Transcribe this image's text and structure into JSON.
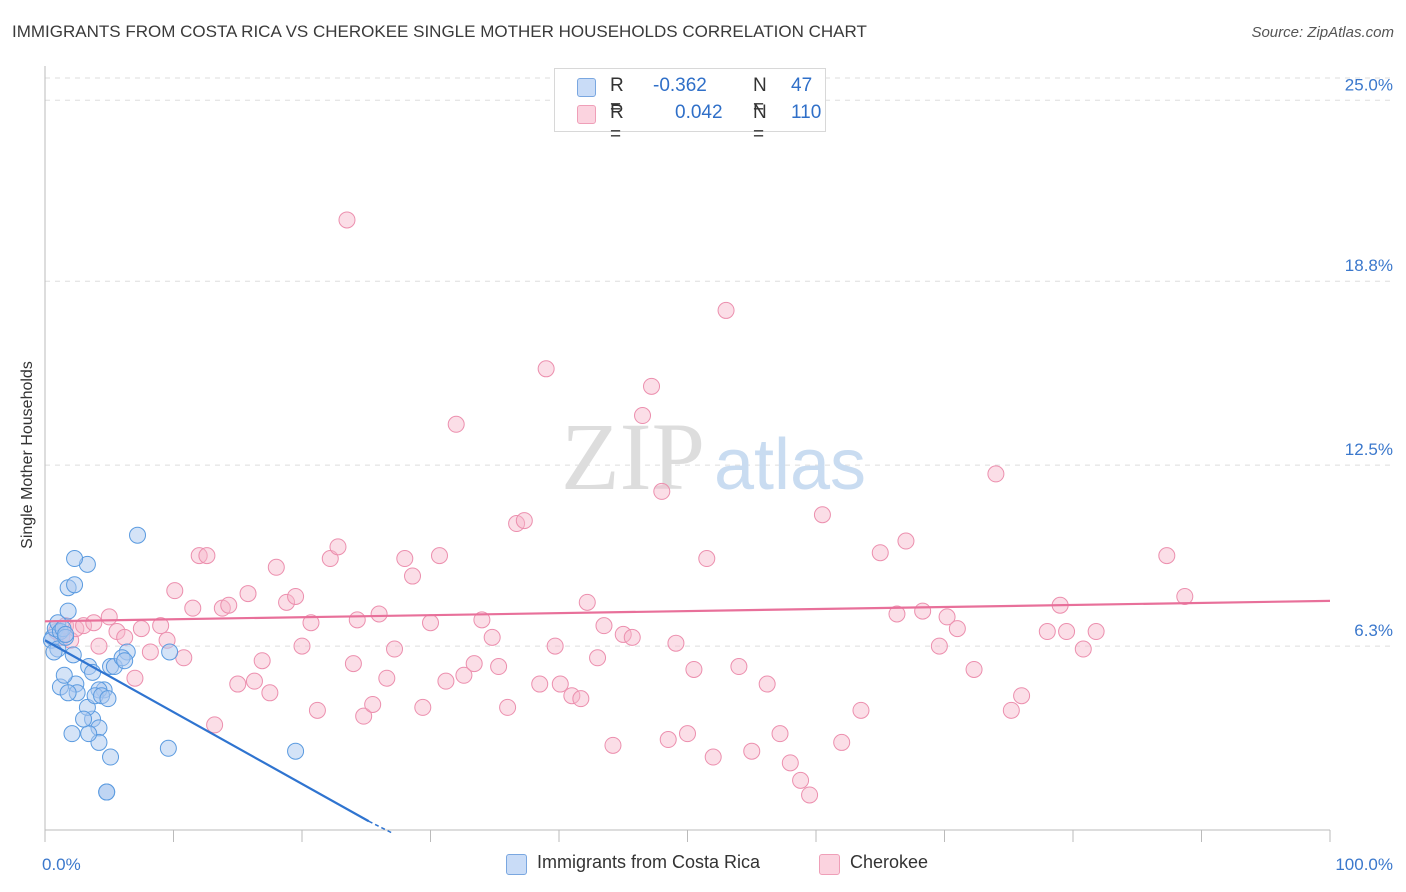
{
  "header": {
    "title": "IMMIGRANTS FROM COSTA RICA VS CHEROKEE SINGLE MOTHER HOUSEHOLDS CORRELATION CHART",
    "source": "Source: ZipAtlas.com"
  },
  "watermark": {
    "zip": "ZIP",
    "atlas": "atlas"
  },
  "stats_legend": [
    {
      "r_label": "R =",
      "r_value": "-0.362",
      "n_label": "N =",
      "n_value": "47",
      "color": "#a9c8f0"
    },
    {
      "r_label": "R =",
      "r_value": "0.042",
      "n_label": "N =",
      "n_value": "110",
      "color": "#f6b6c9"
    }
  ],
  "bottom_legend": [
    {
      "label": "Immigrants from Costa Rica",
      "color": "#a9c8f0"
    },
    {
      "label": "Cherokee",
      "color": "#f6b6c9"
    }
  ],
  "chart_data": {
    "type": "scatter",
    "title": "IMMIGRANTS FROM COSTA RICA VS CHEROKEE SINGLE MOTHER HOUSEHOLDS CORRELATION CHART",
    "xlabel": "",
    "ylabel": "Single Mother Households",
    "xlim": [
      0,
      100
    ],
    "ylim": [
      0,
      25.9
    ],
    "x_tick_labels": [
      "0.0%",
      "100.0%"
    ],
    "y_ticks": [
      6.3,
      12.5,
      18.8,
      25.0
    ],
    "y_tick_labels": [
      "6.3%",
      "12.5%",
      "18.8%",
      "25.0%"
    ],
    "grid": true,
    "legend": "top-center",
    "colors": {
      "blue": "#5b9be0",
      "blue_line": "#2f74d0",
      "pink": "#ec8fae",
      "pink_line": "#e8709a",
      "tick_label": "#3b78cc"
    },
    "series": [
      {
        "name": "Immigrants from Costa Rica",
        "trend": {
          "x": [
            0,
            25.2
          ],
          "y": [
            6.5,
            0.3
          ]
        },
        "trend_dashed": {
          "x": [
            25.2,
            27.0
          ],
          "y": [
            0.3,
            -0.1
          ]
        },
        "x": [
          0.6,
          0.5,
          0.8,
          1.0,
          1.2,
          1.4,
          1.0,
          0.7,
          1.6,
          1.6,
          2.2,
          2.4,
          3.4,
          2.5,
          4.6,
          1.2,
          1.5,
          1.8,
          3.7,
          4.2,
          6.4,
          3.7,
          3.3,
          5.1,
          4.8,
          4.8,
          2.1,
          4.2,
          4.2,
          3.4,
          3.0,
          5.1,
          5.4,
          6.0,
          6.2,
          7.2,
          9.7,
          3.3,
          1.8,
          2.3,
          1.8,
          2.3,
          9.6,
          19.5,
          3.9,
          4.4,
          4.9
        ],
        "y": [
          6.6,
          6.5,
          6.9,
          7.1,
          6.8,
          6.9,
          6.2,
          6.1,
          6.6,
          6.7,
          6.0,
          5.0,
          5.6,
          4.7,
          4.8,
          4.9,
          5.3,
          4.7,
          5.4,
          4.8,
          6.1,
          3.8,
          4.2,
          2.5,
          1.3,
          1.3,
          3.3,
          3.5,
          3.0,
          3.3,
          3.8,
          5.6,
          5.6,
          5.9,
          5.8,
          10.1,
          6.1,
          9.1,
          7.5,
          9.3,
          8.3,
          8.4,
          2.8,
          2.7,
          4.6,
          4.6,
          4.5
        ]
      },
      {
        "name": "Cherokee",
        "trend": {
          "x": [
            0,
            100
          ],
          "y": [
            7.15,
            7.85
          ]
        },
        "x": [
          0.9,
          1.3,
          1.6,
          2.0,
          2.4,
          3.0,
          3.8,
          4.2,
          5.0,
          5.6,
          6.2,
          7.0,
          7.5,
          8.2,
          9.0,
          9.5,
          10.1,
          10.8,
          11.5,
          12.0,
          12.6,
          13.2,
          13.8,
          14.3,
          15.0,
          15.8,
          16.3,
          16.9,
          17.5,
          18.0,
          18.8,
          19.5,
          20.0,
          20.7,
          21.2,
          22.2,
          22.8,
          23.5,
          24.0,
          24.3,
          24.8,
          25.5,
          26.0,
          26.6,
          27.2,
          28.0,
          28.6,
          29.4,
          30.0,
          30.7,
          31.2,
          32.0,
          32.6,
          33.4,
          34.0,
          34.8,
          35.3,
          36.0,
          36.7,
          37.3,
          38.5,
          39.0,
          39.7,
          40.1,
          41.0,
          41.7,
          42.2,
          43.0,
          43.5,
          44.2,
          45.0,
          45.7,
          46.5,
          47.2,
          48.0,
          48.5,
          49.1,
          50.0,
          50.5,
          51.5,
          52.0,
          53.0,
          54.0,
          55.0,
          56.2,
          57.2,
          58.0,
          58.8,
          59.5,
          60.5,
          62.0,
          63.5,
          65.0,
          66.3,
          67.0,
          68.3,
          69.6,
          70.2,
          71.0,
          72.3,
          74.0,
          75.2,
          76.0,
          78.0,
          79.0,
          79.5,
          80.8,
          81.8,
          87.3,
          88.7
        ],
        "y": [
          6.8,
          6.6,
          7.0,
          6.5,
          6.9,
          7.0,
          7.1,
          6.3,
          7.3,
          6.8,
          6.6,
          5.2,
          6.9,
          6.1,
          7.0,
          6.5,
          8.2,
          5.9,
          7.6,
          9.4,
          9.4,
          3.6,
          7.6,
          7.7,
          5.0,
          8.1,
          5.1,
          5.8,
          4.7,
          9.0,
          7.8,
          8.0,
          6.3,
          7.1,
          4.1,
          9.3,
          9.7,
          20.9,
          5.7,
          7.2,
          3.9,
          4.3,
          7.4,
          5.2,
          6.2,
          9.3,
          8.7,
          4.2,
          7.1,
          9.4,
          5.1,
          13.9,
          5.3,
          5.7,
          7.2,
          6.6,
          5.6,
          4.2,
          10.5,
          10.6,
          5.0,
          15.8,
          6.3,
          5.0,
          4.6,
          4.5,
          7.8,
          5.9,
          7.0,
          2.9,
          6.7,
          6.6,
          14.2,
          15.2,
          11.6,
          3.1,
          6.4,
          3.3,
          5.5,
          9.3,
          2.5,
          17.8,
          5.6,
          2.7,
          5.0,
          3.3,
          2.3,
          1.7,
          1.2,
          10.8,
          3.0,
          4.1,
          9.5,
          7.4,
          9.9,
          7.5,
          6.3,
          7.3,
          6.9,
          5.5,
          12.2,
          4.1,
          4.6,
          6.8,
          7.7,
          6.8,
          6.2,
          6.8,
          9.4,
          8.0
        ]
      }
    ]
  }
}
